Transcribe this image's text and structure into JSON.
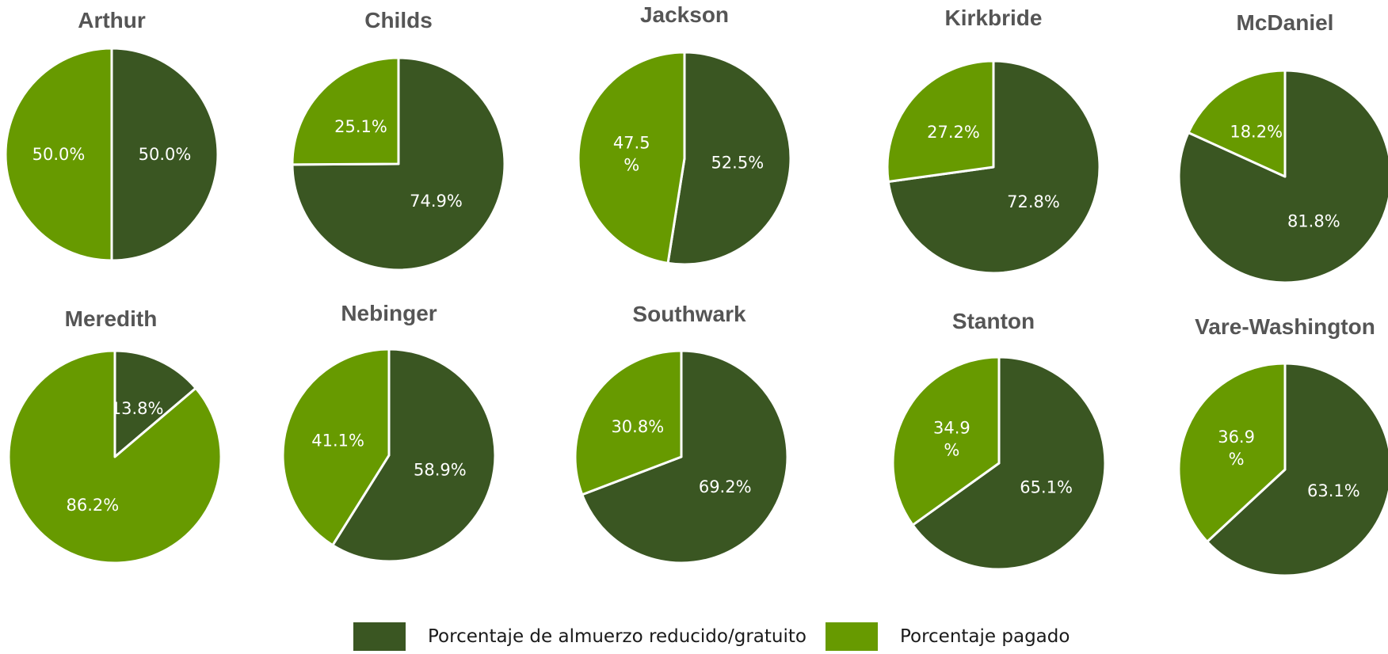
{
  "colors": {
    "reduced_free": "#3a5622",
    "paid": "#679a00",
    "title": "#555555",
    "label": "#ffffff"
  },
  "legend": {
    "items": [
      {
        "label": "Porcentaje de almuerzo reducido/gratuito",
        "color": "#3a5622"
      },
      {
        "label": "Porcentaje pagado",
        "color": "#679a00"
      }
    ]
  },
  "chart_data": [
    {
      "type": "pie",
      "title": "Arthur",
      "slices": [
        {
          "name": "Porcentaje de almuerzo reducido/gratuito",
          "value": 50.0,
          "label": "50.0%"
        },
        {
          "name": "Porcentaje pagado",
          "value": 50.0,
          "label": "50.0%"
        }
      ]
    },
    {
      "type": "pie",
      "title": "Childs",
      "slices": [
        {
          "name": "Porcentaje de almuerzo reducido/gratuito",
          "value": 74.9,
          "label": "74.9%"
        },
        {
          "name": "Porcentaje pagado",
          "value": 25.1,
          "label": "25.1%"
        }
      ]
    },
    {
      "type": "pie",
      "title": "Jackson",
      "slices": [
        {
          "name": "Porcentaje de almuerzo reducido/gratuito",
          "value": 52.5,
          "label": "52.5%"
        },
        {
          "name": "Porcentaje pagado",
          "value": 47.5,
          "label": "47.5\n%"
        }
      ]
    },
    {
      "type": "pie",
      "title": "Kirkbride",
      "slices": [
        {
          "name": "Porcentaje de almuerzo reducido/gratuito",
          "value": 72.8,
          "label": "72.8%"
        },
        {
          "name": "Porcentaje pagado",
          "value": 27.2,
          "label": "27.2%"
        }
      ]
    },
    {
      "type": "pie",
      "title": "McDaniel",
      "slices": [
        {
          "name": "Porcentaje de almuerzo reducido/gratuito",
          "value": 81.8,
          "label": "81.8%"
        },
        {
          "name": "Porcentaje pagado",
          "value": 18.2,
          "label": "18.2%"
        }
      ]
    },
    {
      "type": "pie",
      "title": "Meredith",
      "slices": [
        {
          "name": "Porcentaje de almuerzo reducido/gratuito",
          "value": 13.8,
          "label": "13.8%"
        },
        {
          "name": "Porcentaje pagado",
          "value": 86.2,
          "label": "86.2%"
        }
      ]
    },
    {
      "type": "pie",
      "title": "Nebinger",
      "slices": [
        {
          "name": "Porcentaje de almuerzo reducido/gratuito",
          "value": 58.9,
          "label": "58.9%"
        },
        {
          "name": "Porcentaje pagado",
          "value": 41.1,
          "label": "41.1%"
        }
      ]
    },
    {
      "type": "pie",
      "title": "Southwark",
      "slices": [
        {
          "name": "Porcentaje de almuerzo reducido/gratuito",
          "value": 69.2,
          "label": "69.2%"
        },
        {
          "name": "Porcentaje pagado",
          "value": 30.8,
          "label": "30.8%"
        }
      ]
    },
    {
      "type": "pie",
      "title": "Stanton",
      "slices": [
        {
          "name": "Porcentaje de almuerzo reducido/gratuito",
          "value": 65.1,
          "label": "65.1%"
        },
        {
          "name": "Porcentaje pagado",
          "value": 34.9,
          "label": "34.9\n%"
        }
      ]
    },
    {
      "type": "pie",
      "title": "Vare-Washington",
      "slices": [
        {
          "name": "Porcentaje de almuerzo reducido/gratuito",
          "value": 63.1,
          "label": "63.1%"
        },
        {
          "name": "Porcentaje pagado",
          "value": 36.9,
          "label": "36.9\n%"
        }
      ]
    }
  ]
}
